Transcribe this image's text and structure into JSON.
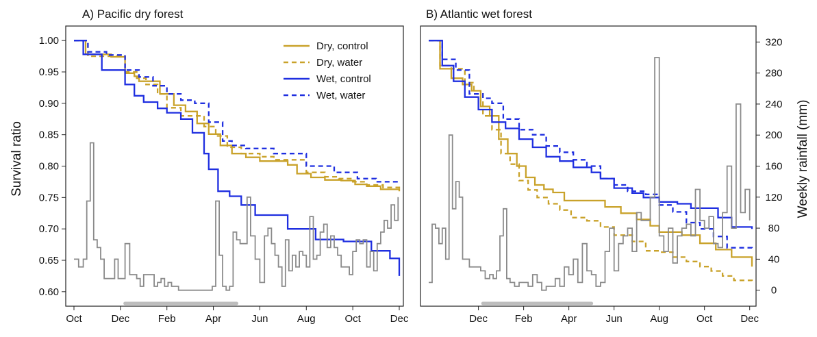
{
  "figure": {
    "left_axis_title": "Survival ratio",
    "right_axis_title": "Weekly rainfall (mm)"
  },
  "legend": [
    {
      "label": "Dry, control",
      "color": "#c9a22a",
      "dash": "solid"
    },
    {
      "label": "Dry, water",
      "color": "#c9a22a",
      "dash": "dashed"
    },
    {
      "label": "Wet, control",
      "color": "#1f2fe0",
      "dash": "solid"
    },
    {
      "label": "Wet, water",
      "color": "#1f2fe0",
      "dash": "dashed"
    }
  ],
  "colors": {
    "dry": "#c9a22a",
    "wet": "#1f2fe0",
    "rainfall": "#8a8a8a",
    "dry_season_bar": "#bdbdbd"
  },
  "chart_data": [
    {
      "type": "line",
      "title": "A) Pacific dry forest",
      "xlabel": "",
      "ylabel": "Survival ratio",
      "y2label": "Weekly rainfall (mm)",
      "xlim": [
        0,
        14
      ],
      "ylim": [
        0.59,
        1.01
      ],
      "y2lim": [
        -10,
        330
      ],
      "x_ticks": [
        {
          "x": 0,
          "label": "Oct"
        },
        {
          "x": 2,
          "label": "Dec"
        },
        {
          "x": 4,
          "label": "Feb"
        },
        {
          "x": 6,
          "label": "Apr"
        },
        {
          "x": 8,
          "label": "Jun"
        },
        {
          "x": 10,
          "label": "Aug"
        },
        {
          "x": 12,
          "label": "Oct"
        },
        {
          "x": 14,
          "label": "Dec"
        }
      ],
      "y_ticks": [
        0.6,
        0.65,
        0.7,
        0.75,
        0.8,
        0.85,
        0.9,
        0.95,
        1.0
      ],
      "y2_ticks": [],
      "show_left_labels": true,
      "show_right_labels": false,
      "dry_season": [
        2.2,
        7.0
      ],
      "series": [
        {
          "name": "Dry, control",
          "color": "#c9a22a",
          "dash": "solid",
          "x": [
            0,
            0.5,
            1.3,
            1.6,
            2.2,
            2.6,
            2.8,
            3.2,
            3.7,
            4.3,
            4.8,
            5.3,
            5.8,
            6.3,
            6.8,
            7.4,
            8.0,
            9.2,
            9.6,
            10.2,
            10.8,
            11.5,
            12.1,
            12.6,
            13.2,
            14.0
          ],
          "y": [
            1.0,
            0.978,
            0.978,
            0.974,
            0.948,
            0.943,
            0.935,
            0.935,
            0.915,
            0.897,
            0.887,
            0.868,
            0.851,
            0.833,
            0.82,
            0.814,
            0.808,
            0.802,
            0.788,
            0.782,
            0.778,
            0.777,
            0.771,
            0.768,
            0.763,
            0.76
          ]
        },
        {
          "name": "Dry, water",
          "color": "#c9a22a",
          "dash": "dashed",
          "x": [
            0,
            0.6,
            1.4,
            2.2,
            2.7,
            3.1,
            3.6,
            4.0,
            4.6,
            5.0,
            5.6,
            6.1,
            6.6,
            7.2,
            8.0,
            8.6,
            9.2,
            10.0,
            10.8,
            11.4,
            12.0,
            12.6,
            13.3,
            14.0
          ],
          "y": [
            1.0,
            0.975,
            0.975,
            0.95,
            0.94,
            0.93,
            0.915,
            0.893,
            0.88,
            0.88,
            0.863,
            0.848,
            0.83,
            0.82,
            0.815,
            0.81,
            0.81,
            0.79,
            0.783,
            0.78,
            0.775,
            0.77,
            0.766,
            0.763
          ]
        },
        {
          "name": "Wet, control",
          "color": "#1f2fe0",
          "dash": "solid",
          "x": [
            0,
            0.4,
            1.2,
            2.2,
            2.6,
            3.0,
            3.6,
            4.0,
            4.6,
            5.1,
            5.6,
            5.8,
            6.2,
            6.7,
            7.2,
            7.8,
            9.2,
            10.4,
            11.6,
            12.8,
            13.6,
            14.0
          ],
          "y": [
            1.0,
            0.978,
            0.953,
            0.93,
            0.912,
            0.902,
            0.892,
            0.885,
            0.875,
            0.853,
            0.82,
            0.795,
            0.76,
            0.752,
            0.738,
            0.722,
            0.7,
            0.683,
            0.68,
            0.665,
            0.653,
            0.625
          ]
        },
        {
          "name": "Wet, water",
          "color": "#1f2fe0",
          "dash": "dashed",
          "x": [
            0,
            0.6,
            1.4,
            2.2,
            2.8,
            3.4,
            4.0,
            4.6,
            5.2,
            5.8,
            6.4,
            6.8,
            7.4,
            8.0,
            8.6,
            9.2,
            10.0,
            11.2,
            12.2,
            13.0,
            14.0
          ],
          "y": [
            1.0,
            0.982,
            0.977,
            0.953,
            0.942,
            0.928,
            0.915,
            0.905,
            0.9,
            0.87,
            0.84,
            0.833,
            0.828,
            0.828,
            0.82,
            0.82,
            0.8,
            0.79,
            0.78,
            0.775,
            0.772
          ]
        },
        {
          "name": "",
          "axis": "y2",
          "color": "#8a8a8a",
          "dash": "solid",
          "x": [
            0,
            0.2,
            0.4,
            0.55,
            0.7,
            0.85,
            1.0,
            1.15,
            1.3,
            1.45,
            1.6,
            1.75,
            1.9,
            2.05,
            2.2,
            2.4,
            2.55,
            2.7,
            2.85,
            3.0,
            3.25,
            3.45,
            3.6,
            3.75,
            3.9,
            4.05,
            4.2,
            4.35,
            4.5,
            4.7,
            4.9,
            5.3,
            5.6,
            5.8,
            5.95,
            6.1,
            6.25,
            6.4,
            6.55,
            6.7,
            6.85,
            7.0,
            7.15,
            7.3,
            7.45,
            7.6,
            7.8,
            8.0,
            8.2,
            8.35,
            8.5,
            8.65,
            8.8,
            8.95,
            9.1,
            9.25,
            9.4,
            9.55,
            9.7,
            9.85,
            10.0,
            10.15,
            10.3,
            10.45,
            10.6,
            10.75,
            10.9,
            11.05,
            11.2,
            11.35,
            11.5,
            11.7,
            11.85,
            12.0,
            12.15,
            12.3,
            12.45,
            12.6,
            12.75,
            12.9,
            13.05,
            13.2,
            13.35,
            13.5,
            13.65,
            13.8,
            13.95
          ],
          "y": [
            40,
            30,
            40,
            115,
            190,
            65,
            55,
            40,
            15,
            15,
            15,
            40,
            15,
            15,
            60,
            20,
            20,
            15,
            5,
            20,
            20,
            5,
            10,
            15,
            5,
            10,
            5,
            5,
            0,
            0,
            0,
            0,
            0,
            0,
            5,
            115,
            45,
            5,
            0,
            5,
            75,
            65,
            60,
            60,
            120,
            70,
            40,
            10,
            70,
            80,
            60,
            45,
            30,
            5,
            65,
            25,
            45,
            30,
            50,
            45,
            30,
            95,
            40,
            45,
            75,
            85,
            55,
            70,
            55,
            45,
            30,
            30,
            20,
            50,
            65,
            60,
            65,
            30,
            50,
            25,
            60,
            75,
            90,
            80,
            110,
            90,
            120
          ]
        }
      ]
    },
    {
      "type": "line",
      "title": "B) Atlantic wet forest",
      "xlabel": "",
      "ylabel": "Survival ratio",
      "y2label": "Weekly rainfall (mm)",
      "xlim": [
        0,
        14.3
      ],
      "ylim": [
        0.59,
        1.01
      ],
      "y2lim": [
        -10,
        330
      ],
      "x_ticks": [
        {
          "x": 2.2,
          "label": "Dec"
        },
        {
          "x": 4.2,
          "label": "Feb"
        },
        {
          "x": 6.2,
          "label": "Apr"
        },
        {
          "x": 8.2,
          "label": "Jun"
        },
        {
          "x": 10.2,
          "label": "Aug"
        },
        {
          "x": 12.2,
          "label": "Oct"
        },
        {
          "x": 14.2,
          "label": "Dec"
        }
      ],
      "y_ticks": [],
      "y2_ticks": [
        0,
        40,
        80,
        120,
        160,
        200,
        240,
        280,
        320
      ],
      "show_left_labels": false,
      "show_right_labels": true,
      "dry_season": [
        2.4,
        7.2
      ],
      "series": [
        {
          "name": "Dry, control",
          "color": "#c9a22a",
          "dash": "solid",
          "x": [
            0,
            0.5,
            1.0,
            1.5,
            1.9,
            2.3,
            2.7,
            3.1,
            3.5,
            3.9,
            4.3,
            4.7,
            5.1,
            5.5,
            6.0,
            7.2,
            7.8,
            8.5,
            9.2,
            9.8,
            10.2,
            10.7,
            11.2,
            12.0,
            12.7,
            13.4,
            14.3
          ],
          "y": [
            1.0,
            0.955,
            0.94,
            0.93,
            0.92,
            0.895,
            0.88,
            0.843,
            0.82,
            0.8,
            0.782,
            0.77,
            0.763,
            0.758,
            0.745,
            0.745,
            0.735,
            0.725,
            0.715,
            0.705,
            0.695,
            0.695,
            0.69,
            0.677,
            0.667,
            0.655,
            0.64
          ]
        },
        {
          "name": "Dry, water",
          "color": "#c9a22a",
          "dash": "dashed",
          "x": [
            0,
            0.5,
            1.0,
            1.6,
            2.0,
            2.4,
            2.8,
            3.2,
            3.6,
            4.0,
            4.4,
            4.8,
            5.3,
            5.8,
            6.3,
            7.0,
            7.6,
            8.2,
            9.0,
            9.6,
            10.2,
            10.8,
            11.4,
            12.0,
            12.5,
            13.0,
            13.5,
            14.3
          ],
          "y": [
            1.0,
            0.96,
            0.955,
            0.933,
            0.915,
            0.88,
            0.858,
            0.82,
            0.803,
            0.777,
            0.762,
            0.75,
            0.74,
            0.73,
            0.718,
            0.713,
            0.703,
            0.69,
            0.68,
            0.665,
            0.663,
            0.655,
            0.648,
            0.64,
            0.633,
            0.625,
            0.618,
            0.615
          ]
        },
        {
          "name": "Wet, control",
          "color": "#1f2fe0",
          "dash": "solid",
          "x": [
            0,
            0.6,
            1.1,
            1.6,
            2.2,
            2.8,
            3.4,
            4.0,
            4.6,
            5.2,
            5.8,
            6.4,
            7.2,
            7.6,
            8.2,
            9.0,
            9.5,
            10.2,
            11.0,
            11.6,
            12.2,
            12.8,
            13.4,
            14.3
          ],
          "y": [
            1.0,
            0.96,
            0.935,
            0.91,
            0.89,
            0.87,
            0.86,
            0.843,
            0.83,
            0.815,
            0.808,
            0.798,
            0.79,
            0.78,
            0.765,
            0.757,
            0.75,
            0.743,
            0.74,
            0.733,
            0.733,
            0.718,
            0.703,
            0.7
          ]
        },
        {
          "name": "Wet, water",
          "color": "#1f2fe0",
          "dash": "dashed",
          "x": [
            0,
            0.6,
            1.2,
            1.8,
            2.4,
            2.8,
            3.3,
            4.0,
            4.6,
            5.2,
            5.8,
            6.4,
            7.0,
            7.6,
            8.2,
            8.8,
            9.6,
            10.2,
            10.8,
            11.4,
            12.0,
            12.6,
            13.2,
            14.3
          ],
          "y": [
            1.0,
            0.97,
            0.953,
            0.915,
            0.908,
            0.9,
            0.875,
            0.858,
            0.85,
            0.832,
            0.822,
            0.81,
            0.8,
            0.78,
            0.77,
            0.76,
            0.755,
            0.738,
            0.727,
            0.71,
            0.7,
            0.688,
            0.67,
            0.665
          ]
        },
        {
          "name": "",
          "axis": "y2",
          "color": "#8a8a8a",
          "dash": "solid",
          "x": [
            0,
            0.15,
            0.3,
            0.45,
            0.6,
            0.75,
            0.9,
            1.05,
            1.2,
            1.35,
            1.5,
            1.65,
            1.8,
            1.95,
            2.1,
            2.3,
            2.5,
            2.7,
            2.85,
            3.0,
            3.15,
            3.3,
            3.45,
            3.6,
            3.8,
            4.0,
            4.2,
            4.4,
            4.6,
            4.8,
            5.0,
            5.2,
            5.4,
            5.6,
            5.8,
            6.0,
            6.2,
            6.4,
            6.6,
            6.8,
            7.0,
            7.2,
            7.4,
            7.6,
            7.8,
            8.0,
            8.2,
            8.4,
            8.6,
            8.8,
            9.0,
            9.2,
            9.4,
            9.6,
            9.8,
            10.0,
            10.2,
            10.4,
            10.6,
            10.8,
            11.0,
            11.2,
            11.4,
            11.6,
            11.8,
            12.0,
            12.2,
            12.4,
            12.6,
            12.8,
            13.0,
            13.2,
            13.4,
            13.6,
            13.8,
            14.0,
            14.2
          ],
          "y": [
            10,
            85,
            80,
            60,
            80,
            40,
            200,
            105,
            140,
            120,
            40,
            40,
            30,
            30,
            30,
            25,
            15,
            20,
            15,
            25,
            70,
            105,
            15,
            10,
            5,
            10,
            10,
            5,
            20,
            10,
            0,
            5,
            5,
            15,
            5,
            30,
            20,
            40,
            10,
            60,
            25,
            20,
            5,
            10,
            50,
            80,
            25,
            60,
            70,
            80,
            50,
            100,
            90,
            90,
            120,
            300,
            70,
            50,
            80,
            35,
            70,
            80,
            85,
            70,
            130,
            90,
            80,
            95,
            60,
            55,
            100,
            160,
            80,
            240,
            100,
            130,
            90
          ]
        }
      ]
    }
  ]
}
